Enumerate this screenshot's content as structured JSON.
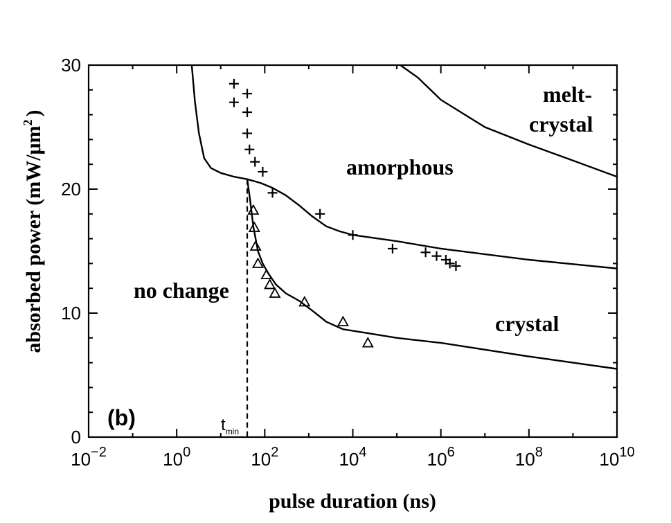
{
  "chart_data": {
    "type": "line",
    "title": "",
    "xlabel": "pulse duration (ns)",
    "ylabel": "absorbed power (mW/μm",
    "ylabel_sup": "2",
    "ylabel_close": ")",
    "xscale": "log",
    "xlim": [
      0.01,
      10000000000
    ],
    "ylim": [
      0,
      30
    ],
    "x_tick_labels": [
      {
        "base": "10",
        "exp": "−2",
        "value": 0.01
      },
      {
        "base": "10",
        "exp": "0",
        "value": 1
      },
      {
        "base": "10",
        "exp": "2",
        "value": 100
      },
      {
        "base": "10",
        "exp": "4",
        "value": 10000
      },
      {
        "base": "10",
        "exp": "6",
        "value": 1000000
      },
      {
        "base": "10",
        "exp": "8",
        "value": 100000000
      },
      {
        "base": "10",
        "exp": "10",
        "value": 10000000000
      }
    ],
    "y_ticks": [
      0,
      10,
      20,
      30
    ],
    "y_tick_labels": [
      "0",
      "10",
      "20",
      "30"
    ],
    "panel_label": "(b)",
    "region_labels": {
      "amorphous": "amorphous",
      "no_change": "no change",
      "crystal": "crystal",
      "melt_crystal_1": "melt-",
      "melt_crystal_2": "crystal"
    },
    "tmin_label": "t",
    "tmin_sub": "min",
    "tmin_x": 40,
    "tmin_y_top": 20.8,
    "curves": [
      {
        "id": "amorphization-threshold",
        "points": [
          [
            2.2,
            30
          ],
          [
            2.6,
            27
          ],
          [
            3.2,
            24.5
          ],
          [
            4.2,
            22.5
          ],
          [
            6,
            21.7
          ],
          [
            10,
            21.3
          ],
          [
            20,
            21.0
          ],
          [
            40,
            20.8
          ],
          [
            80,
            20.5
          ],
          [
            150,
            20.1
          ],
          [
            300,
            19.5
          ],
          [
            600,
            18.7
          ],
          [
            1200,
            17.8
          ],
          [
            2500,
            17.0
          ],
          [
            5000,
            16.6
          ],
          [
            10000,
            16.3
          ],
          [
            100000,
            15.8
          ],
          [
            1000000,
            15.2
          ],
          [
            100000000,
            14.3
          ],
          [
            10000000000,
            13.6
          ]
        ]
      },
      {
        "id": "crystallization-threshold",
        "points": [
          [
            40,
            20.8
          ],
          [
            45,
            19.5
          ],
          [
            55,
            17.0
          ],
          [
            70,
            15.0
          ],
          [
            90,
            14.0
          ],
          [
            120,
            13.2
          ],
          [
            180,
            12.3
          ],
          [
            300,
            11.6
          ],
          [
            600,
            11.0
          ],
          [
            1200,
            10.2
          ],
          [
            2500,
            9.3
          ],
          [
            6000,
            8.7
          ],
          [
            20000,
            8.4
          ],
          [
            100000,
            8.0
          ],
          [
            1000000,
            7.6
          ],
          [
            100000000,
            6.5
          ],
          [
            10000000000,
            5.5
          ]
        ]
      },
      {
        "id": "melt-crystal-threshold",
        "points": [
          [
            120000,
            30
          ],
          [
            300000,
            29.0
          ],
          [
            1000000,
            27.2
          ],
          [
            10000000,
            25.0
          ],
          [
            100000000,
            23.6
          ],
          [
            1000000000,
            22.3
          ],
          [
            10000000000,
            21.0
          ]
        ]
      }
    ],
    "plus_points": [
      [
        20,
        28.5
      ],
      [
        20,
        27.0
      ],
      [
        40,
        27.7
      ],
      [
        40,
        26.2
      ],
      [
        40,
        24.5
      ],
      [
        45,
        23.2
      ],
      [
        60,
        22.2
      ],
      [
        90,
        21.4
      ],
      [
        150,
        19.7
      ],
      [
        1800,
        18.0
      ],
      [
        10000,
        16.3
      ],
      [
        80000,
        15.2
      ],
      [
        450000,
        14.9
      ],
      [
        800000,
        14.6
      ],
      [
        1300000,
        14.3
      ],
      [
        1600000,
        14.0
      ],
      [
        2200000,
        13.8
      ]
    ],
    "triangle_points": [
      [
        55,
        18.3
      ],
      [
        58,
        16.9
      ],
      [
        62,
        15.4
      ],
      [
        70,
        14.0
      ],
      [
        110,
        13.1
      ],
      [
        130,
        12.3
      ],
      [
        170,
        11.6
      ],
      [
        800,
        10.9
      ],
      [
        6000,
        9.3
      ],
      [
        22000,
        7.6
      ]
    ]
  }
}
